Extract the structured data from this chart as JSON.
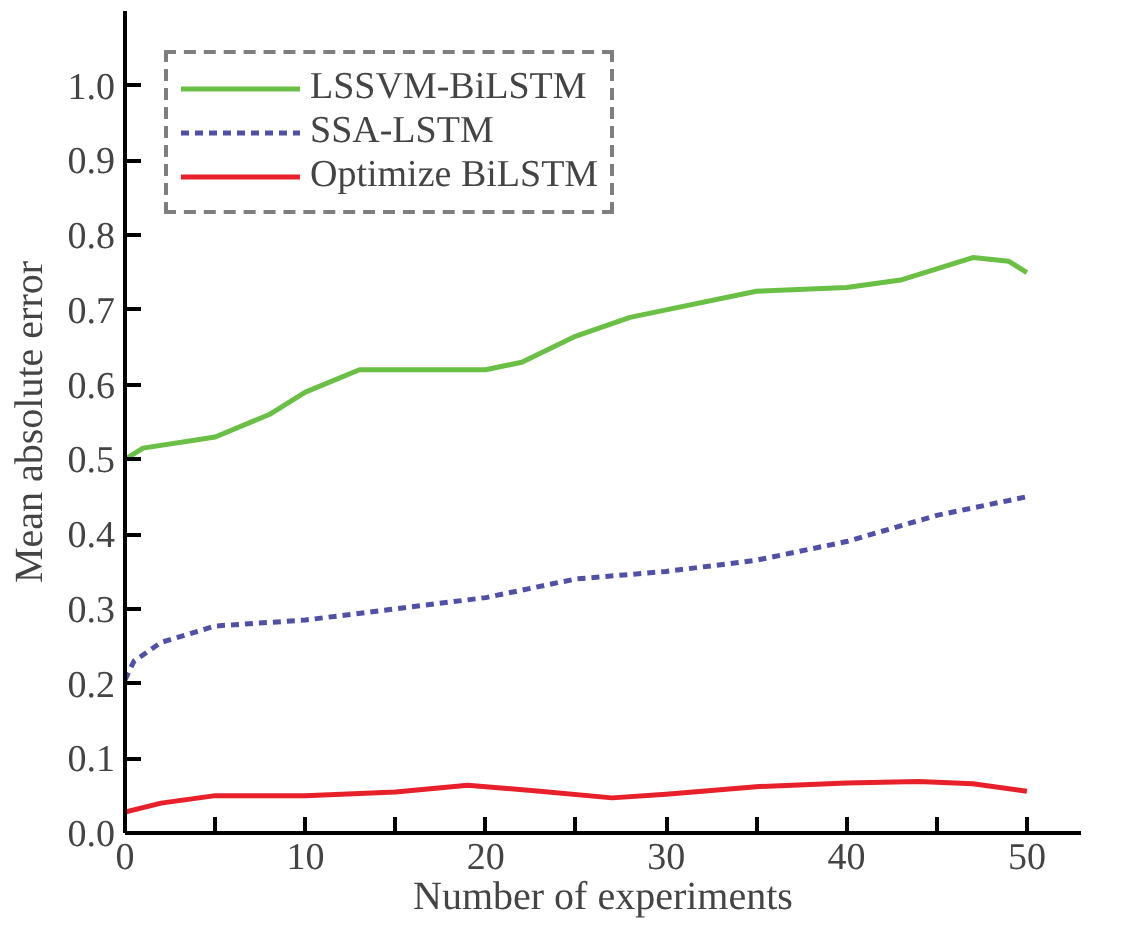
{
  "chart_data": {
    "type": "line",
    "xlabel": "Number of experiments",
    "ylabel": "Mean absolute error",
    "xlim": [
      0,
      53
    ],
    "ylim": [
      0,
      1.1
    ],
    "xticks": [
      0,
      {
        "value": 5,
        "label": null
      },
      10,
      {
        "value": 15,
        "label": null
      },
      20,
      {
        "value": 25,
        "label": null
      },
      30,
      {
        "value": 35,
        "label": null
      },
      40,
      {
        "value": 45,
        "label": null
      },
      50
    ],
    "yticks": [
      {
        "value": 0,
        "label": "0.0"
      },
      0.1,
      0.2,
      0.3,
      0.4,
      0.5,
      0.6,
      0.7,
      0.8,
      0.9,
      {
        "value": 1,
        "label": "1.0"
      }
    ],
    "grid": false,
    "legend": "top left",
    "marker": "none",
    "series": [
      {
        "name": "LSSVM-BiLSTM",
        "color": "#6abf45",
        "line_style": "solid",
        "x": [
          0,
          1,
          5,
          8,
          10,
          13,
          15,
          20,
          22,
          25,
          28,
          30,
          35,
          40,
          43,
          45,
          47,
          49,
          50
        ],
        "values": [
          0.5,
          0.515,
          0.53,
          0.56,
          0.59,
          0.62,
          0.62,
          0.62,
          0.63,
          0.665,
          0.69,
          0.7,
          0.725,
          0.73,
          0.74,
          0.755,
          0.77,
          0.765,
          0.75
        ]
      },
      {
        "name": "SSA-LSTM",
        "color": "#5050a8",
        "line_style": "dashed",
        "x": [
          0,
          0.5,
          2,
          5,
          10,
          15,
          20,
          25,
          30,
          35,
          40,
          45,
          50
        ],
        "values": [
          0.205,
          0.23,
          0.255,
          0.277,
          0.285,
          0.3,
          0.315,
          0.34,
          0.35,
          0.365,
          0.39,
          0.425,
          0.45
        ]
      },
      {
        "name": "Optimize BiLSTM",
        "color": "#e8202a",
        "line_style": "solid",
        "x": [
          0,
          2,
          5,
          10,
          15,
          19,
          23,
          27,
          30,
          35,
          40,
          44,
          47,
          50
        ],
        "values": [
          0.028,
          0.04,
          0.05,
          0.05,
          0.055,
          0.064,
          0.056,
          0.047,
          0.052,
          0.062,
          0.067,
          0.069,
          0.066,
          0.056
        ]
      }
    ]
  }
}
